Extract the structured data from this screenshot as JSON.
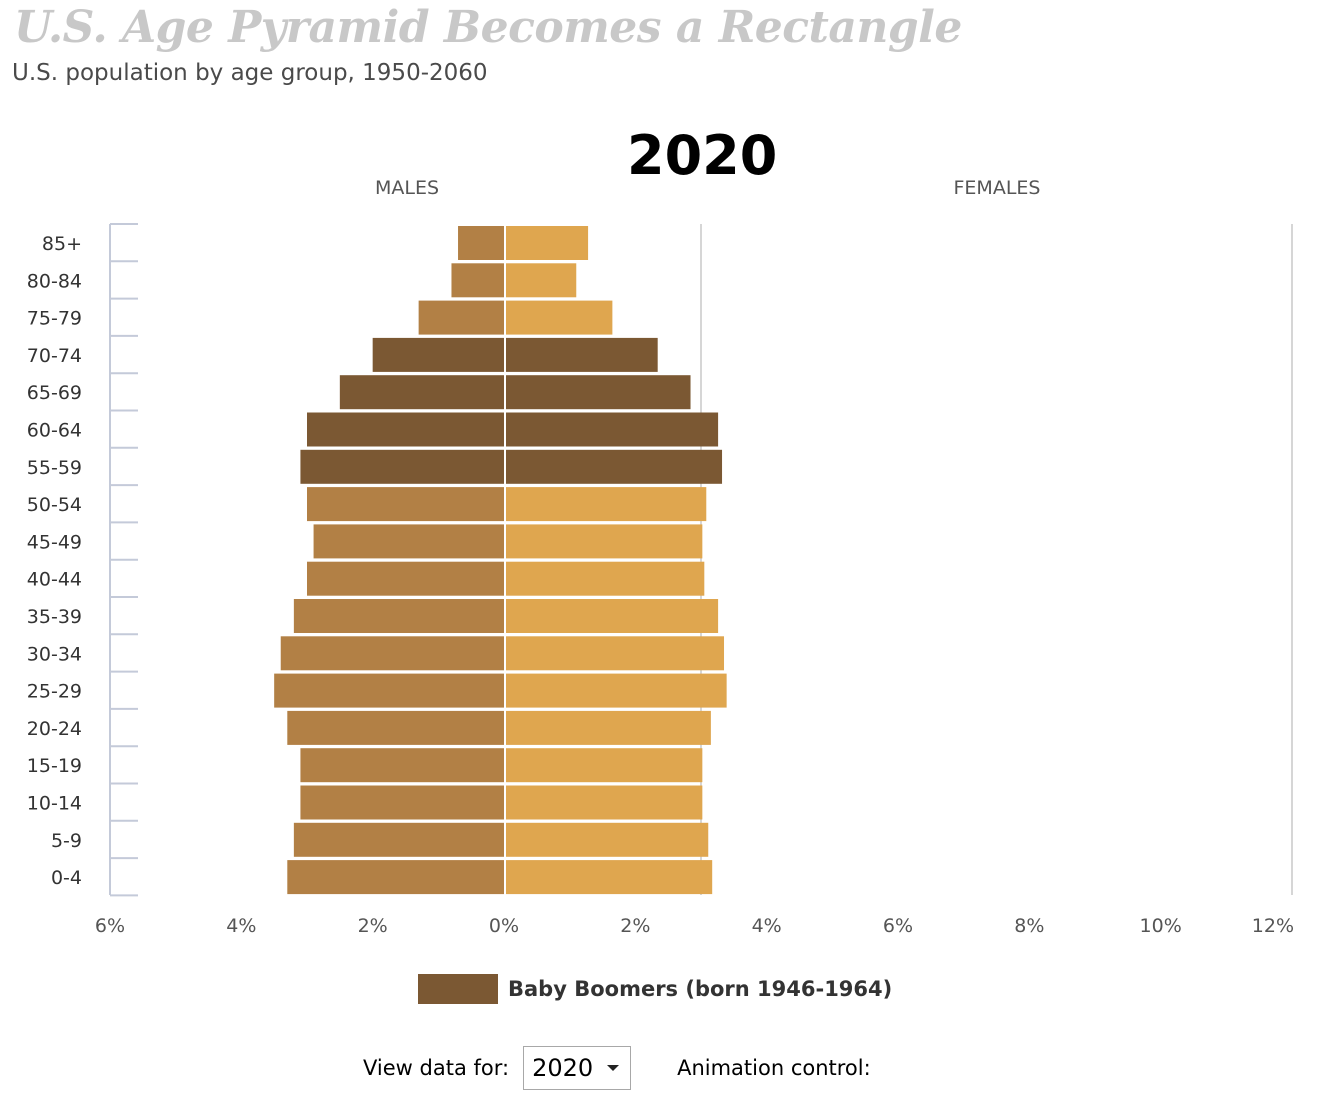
{
  "header": {
    "title": "U.S. Age Pyramid Becomes a Rectangle",
    "subtitle": "U.S. population by age group, 1950-2060",
    "year": "2020"
  },
  "legend": {
    "label": "Baby Boomers (born 1946-1964)",
    "color": "#7b5833"
  },
  "controls": {
    "view_label": "View data for:",
    "selected_year": "2020",
    "animation_label": "Animation control:"
  },
  "chart_data": {
    "type": "bar",
    "orientation": "horizontal-diverging",
    "side_labels": {
      "left": "MALES",
      "right": "FEMALES"
    },
    "categories": [
      "85+",
      "80-84",
      "75-79",
      "70-74",
      "65-69",
      "60-64",
      "55-59",
      "50-54",
      "45-49",
      "40-44",
      "35-39",
      "30-34",
      "25-29",
      "20-24",
      "15-19",
      "10-14",
      "5-9",
      "0-4"
    ],
    "series": [
      {
        "name": "MALES",
        "values": [
          0.7,
          0.8,
          1.3,
          2.0,
          2.5,
          3.0,
          3.1,
          3.0,
          2.9,
          3.0,
          3.2,
          3.4,
          3.5,
          3.3,
          3.1,
          3.1,
          3.2,
          3.3
        ]
      },
      {
        "name": "FEMALES",
        "values": [
          1.25,
          1.07,
          1.62,
          2.31,
          2.81,
          3.23,
          3.29,
          3.05,
          2.99,
          3.02,
          3.23,
          3.32,
          3.36,
          3.12,
          2.99,
          2.99,
          3.08,
          3.14
        ]
      }
    ],
    "baby_boomer_categories": [
      "70-74",
      "65-69",
      "60-64",
      "55-59"
    ],
    "colors": {
      "male": "#b28045",
      "female": "#dfa64f",
      "boomer": "#7b5833",
      "axis": "#c4cad9",
      "grid": "#d6d6d6"
    },
    "x_ticks_left": [
      "6%",
      "4%",
      "2%",
      "0%"
    ],
    "x_ticks_right": [
      "2%",
      "4%",
      "6%",
      "8%",
      "10%",
      "12%"
    ],
    "xlim_left": [
      0,
      6
    ],
    "xlim_right": [
      0,
      12
    ],
    "gridlines_at": [
      3,
      12
    ]
  }
}
